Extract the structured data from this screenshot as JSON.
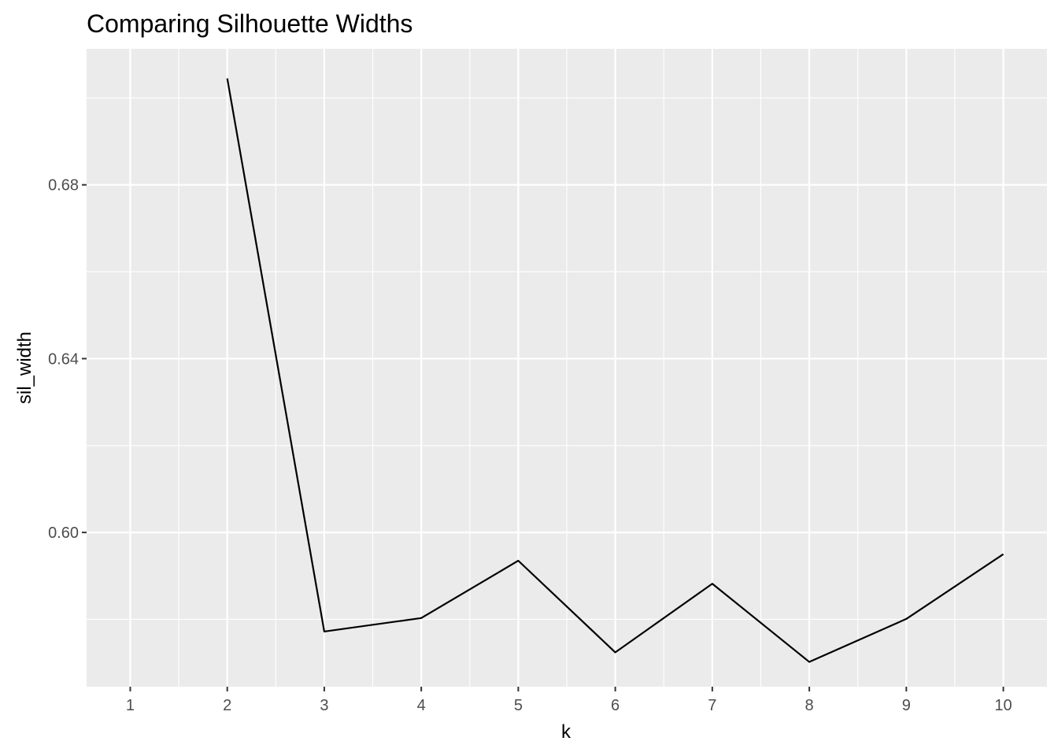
{
  "chart_data": {
    "type": "line",
    "title": "Comparing Silhouette Widths",
    "xlabel": "k",
    "ylabel": "sil_width",
    "x": [
      2,
      3,
      4,
      5,
      6,
      7,
      8,
      9,
      10
    ],
    "series": [
      {
        "values": [
          0.7045,
          0.5772,
          0.5803,
          0.5935,
          0.5724,
          0.5882,
          0.5702,
          0.5801,
          0.595
        ],
        "color": "#000000"
      }
    ],
    "x_ticks": [
      "1",
      "2",
      "3",
      "4",
      "5",
      "6",
      "7",
      "8",
      "9",
      "10"
    ],
    "y_ticks": [
      "0.60",
      "0.64",
      "0.68"
    ],
    "x_tick_values": [
      1,
      2,
      3,
      4,
      5,
      6,
      7,
      8,
      9,
      10
    ],
    "y_tick_values": [
      0.6,
      0.64,
      0.68
    ],
    "xlim": [
      0.55,
      10.45
    ],
    "ylim": [
      0.5645,
      0.7113
    ],
    "grid": true,
    "colors": {
      "panel": "#ebebeb",
      "grid": "#ffffff",
      "line": "#000000",
      "tick_text": "#4d4d4d"
    }
  }
}
